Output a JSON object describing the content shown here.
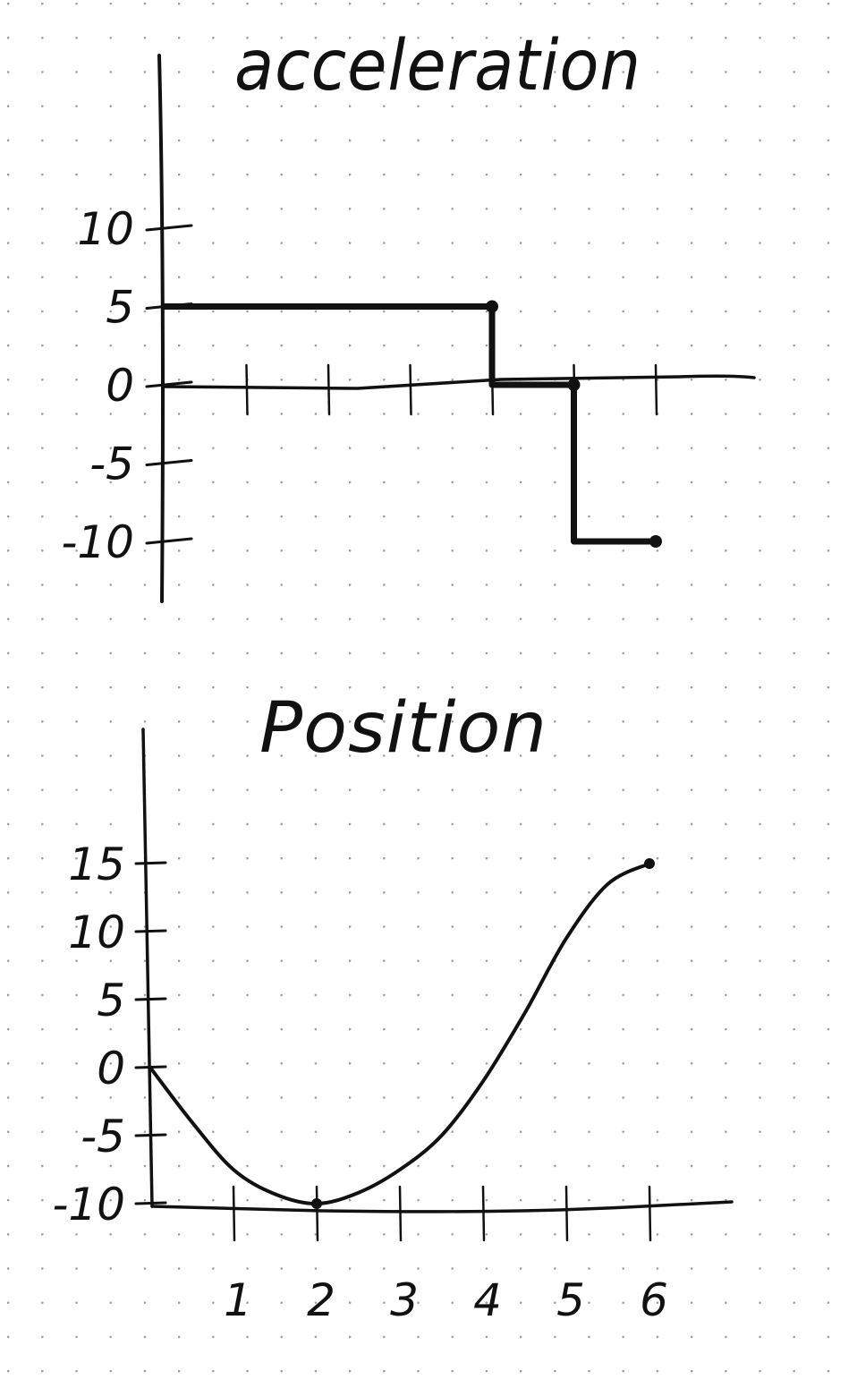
{
  "chart_data": [
    {
      "type": "line",
      "title": "acceleration",
      "xlabel": "",
      "ylabel": "",
      "xlim": [
        0,
        7
      ],
      "ylim": [
        -10,
        10
      ],
      "x_ticks": [
        1,
        2,
        3,
        4,
        5,
        6
      ],
      "y_ticks": [
        10,
        5,
        0,
        -5,
        -10
      ],
      "y_tick_labels": [
        "10",
        "5",
        "0",
        "-5",
        "-10"
      ],
      "series": [
        {
          "step": true,
          "points": [
            [
              0,
              5
            ],
            [
              4,
              5
            ],
            [
              4,
              0
            ],
            [
              5,
              0
            ],
            [
              5,
              -10
            ],
            [
              6,
              -10
            ]
          ],
          "markers": [
            [
              4,
              5
            ],
            [
              5,
              0
            ],
            [
              6,
              -10
            ]
          ]
        }
      ],
      "grid": false
    },
    {
      "type": "line",
      "title": "Position",
      "xlabel": "",
      "ylabel": "",
      "xlim": [
        0,
        7
      ],
      "ylim": [
        -10,
        15
      ],
      "x_ticks": [
        1,
        2,
        3,
        4,
        5,
        6
      ],
      "x_tick_labels": [
        "1",
        "2",
        "3",
        "4",
        "5",
        "6"
      ],
      "y_ticks": [
        15,
        10,
        5,
        0,
        -5,
        -10
      ],
      "y_tick_labels": [
        "15",
        "10",
        "5",
        "0",
        "-5",
        "-10"
      ],
      "series": [
        {
          "points": [
            [
              0,
              0
            ],
            [
              0.5,
              -4
            ],
            [
              1,
              -7.5
            ],
            [
              1.5,
              -9.3
            ],
            [
              2,
              -10
            ],
            [
              2.5,
              -9.2
            ],
            [
              3,
              -7.5
            ],
            [
              3.5,
              -5
            ],
            [
              4,
              -1
            ],
            [
              4.5,
              4
            ],
            [
              5,
              9.5
            ],
            [
              5.5,
              13.5
            ],
            [
              6,
              15
            ]
          ],
          "markers": [
            [
              2,
              -10
            ],
            [
              6,
              15
            ]
          ]
        }
      ],
      "grid": false
    }
  ]
}
